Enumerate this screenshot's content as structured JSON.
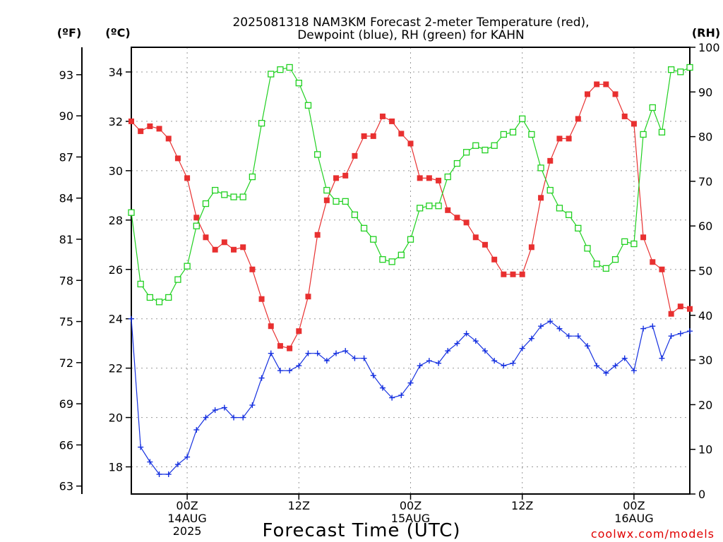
{
  "chart_data": {
    "type": "line",
    "title": [
      "2025081318 NAM3KM Forecast 2-meter Temperature (red),",
      "Dewpoint (blue), RH (green) for KAHN"
    ],
    "xlabel": "Forecast Time (UTC)",
    "credit": "coolwx.com/models",
    "units": {
      "fahrenheit": "(ºF)",
      "celsius": "(ºC)",
      "rh": "(RH)"
    },
    "x_hours_range": [
      0,
      60
    ],
    "x_ticks": [
      {
        "h": 6,
        "lines": [
          "00Z",
          "14AUG",
          "2025"
        ]
      },
      {
        "h": 18,
        "lines": [
          "12Z"
        ]
      },
      {
        "h": 30,
        "lines": [
          "00Z",
          "15AUG"
        ]
      },
      {
        "h": 42,
        "lines": [
          "12Z"
        ]
      },
      {
        "h": 54,
        "lines": [
          "00Z",
          "16AUG"
        ]
      }
    ],
    "y_celsius": {
      "range": [
        16.9,
        35.0
      ],
      "ticks": [
        18,
        20,
        22,
        24,
        26,
        28,
        30,
        32,
        34
      ]
    },
    "y_fahrenheit": {
      "ticks": [
        63,
        66,
        69,
        72,
        75,
        78,
        81,
        84,
        87,
        90,
        93
      ]
    },
    "y_rh": {
      "range": [
        0,
        100
      ],
      "ticks": [
        0,
        10,
        20,
        30,
        40,
        50,
        60,
        70,
        80,
        90,
        100
      ]
    },
    "grid": true,
    "series": [
      {
        "name": "Temperature",
        "color": "#e83030",
        "marker": "filled-square",
        "axis": "celsius",
        "values": [
          32.0,
          31.6,
          31.8,
          31.7,
          31.3,
          30.5,
          29.7,
          28.1,
          27.3,
          26.8,
          27.1,
          26.8,
          26.9,
          26.0,
          24.8,
          23.7,
          22.9,
          22.8,
          23.5,
          24.9,
          27.4,
          28.8,
          29.7,
          29.8,
          30.6,
          31.4,
          31.4,
          32.2,
          32.0,
          31.5,
          31.1,
          29.7,
          29.7,
          29.6,
          28.4,
          28.1,
          27.9,
          27.3,
          27.0,
          26.4,
          25.8,
          25.8,
          25.8,
          26.9,
          28.9,
          30.4,
          31.3,
          31.3,
          32.1,
          33.1,
          33.5,
          33.5,
          33.1,
          32.2,
          31.9,
          27.3,
          26.3,
          26.0,
          24.2,
          24.5,
          24.4
        ]
      },
      {
        "name": "Dewpoint",
        "color": "#1530e0",
        "marker": "plus",
        "axis": "celsius",
        "values": [
          24.0,
          18.8,
          18.2,
          17.7,
          17.7,
          18.1,
          18.4,
          19.5,
          20.0,
          20.3,
          20.4,
          20.0,
          20.0,
          20.5,
          21.6,
          22.6,
          21.9,
          21.9,
          22.1,
          22.6,
          22.6,
          22.3,
          22.6,
          22.7,
          22.4,
          22.4,
          21.7,
          21.2,
          20.8,
          20.9,
          21.4,
          22.1,
          22.3,
          22.2,
          22.7,
          23.0,
          23.4,
          23.1,
          22.7,
          22.3,
          22.1,
          22.2,
          22.8,
          23.2,
          23.7,
          23.9,
          23.6,
          23.3,
          23.3,
          22.9,
          22.1,
          21.8,
          22.1,
          22.4,
          21.9,
          23.6,
          23.7,
          22.4,
          23.3,
          23.4,
          23.5
        ]
      },
      {
        "name": "RH",
        "color": "#20d020",
        "marker": "open-square",
        "axis": "rh",
        "values": [
          63,
          47,
          44,
          43,
          44,
          48,
          51,
          60,
          65,
          68,
          67,
          66.5,
          66.5,
          71,
          83,
          94,
          95,
          95.5,
          92,
          87,
          76,
          68,
          65.5,
          65.5,
          62.5,
          59.5,
          57,
          52.5,
          52,
          53.5,
          57,
          64,
          64.5,
          64.5,
          71,
          74,
          76.5,
          78,
          77,
          78,
          80.5,
          81,
          84,
          80.5,
          73,
          68,
          64,
          62.5,
          59.5,
          55,
          51.5,
          50.5,
          52.5,
          56.5,
          56,
          80.5,
          86.5,
          81,
          95,
          94.5,
          95.5
        ]
      }
    ]
  }
}
